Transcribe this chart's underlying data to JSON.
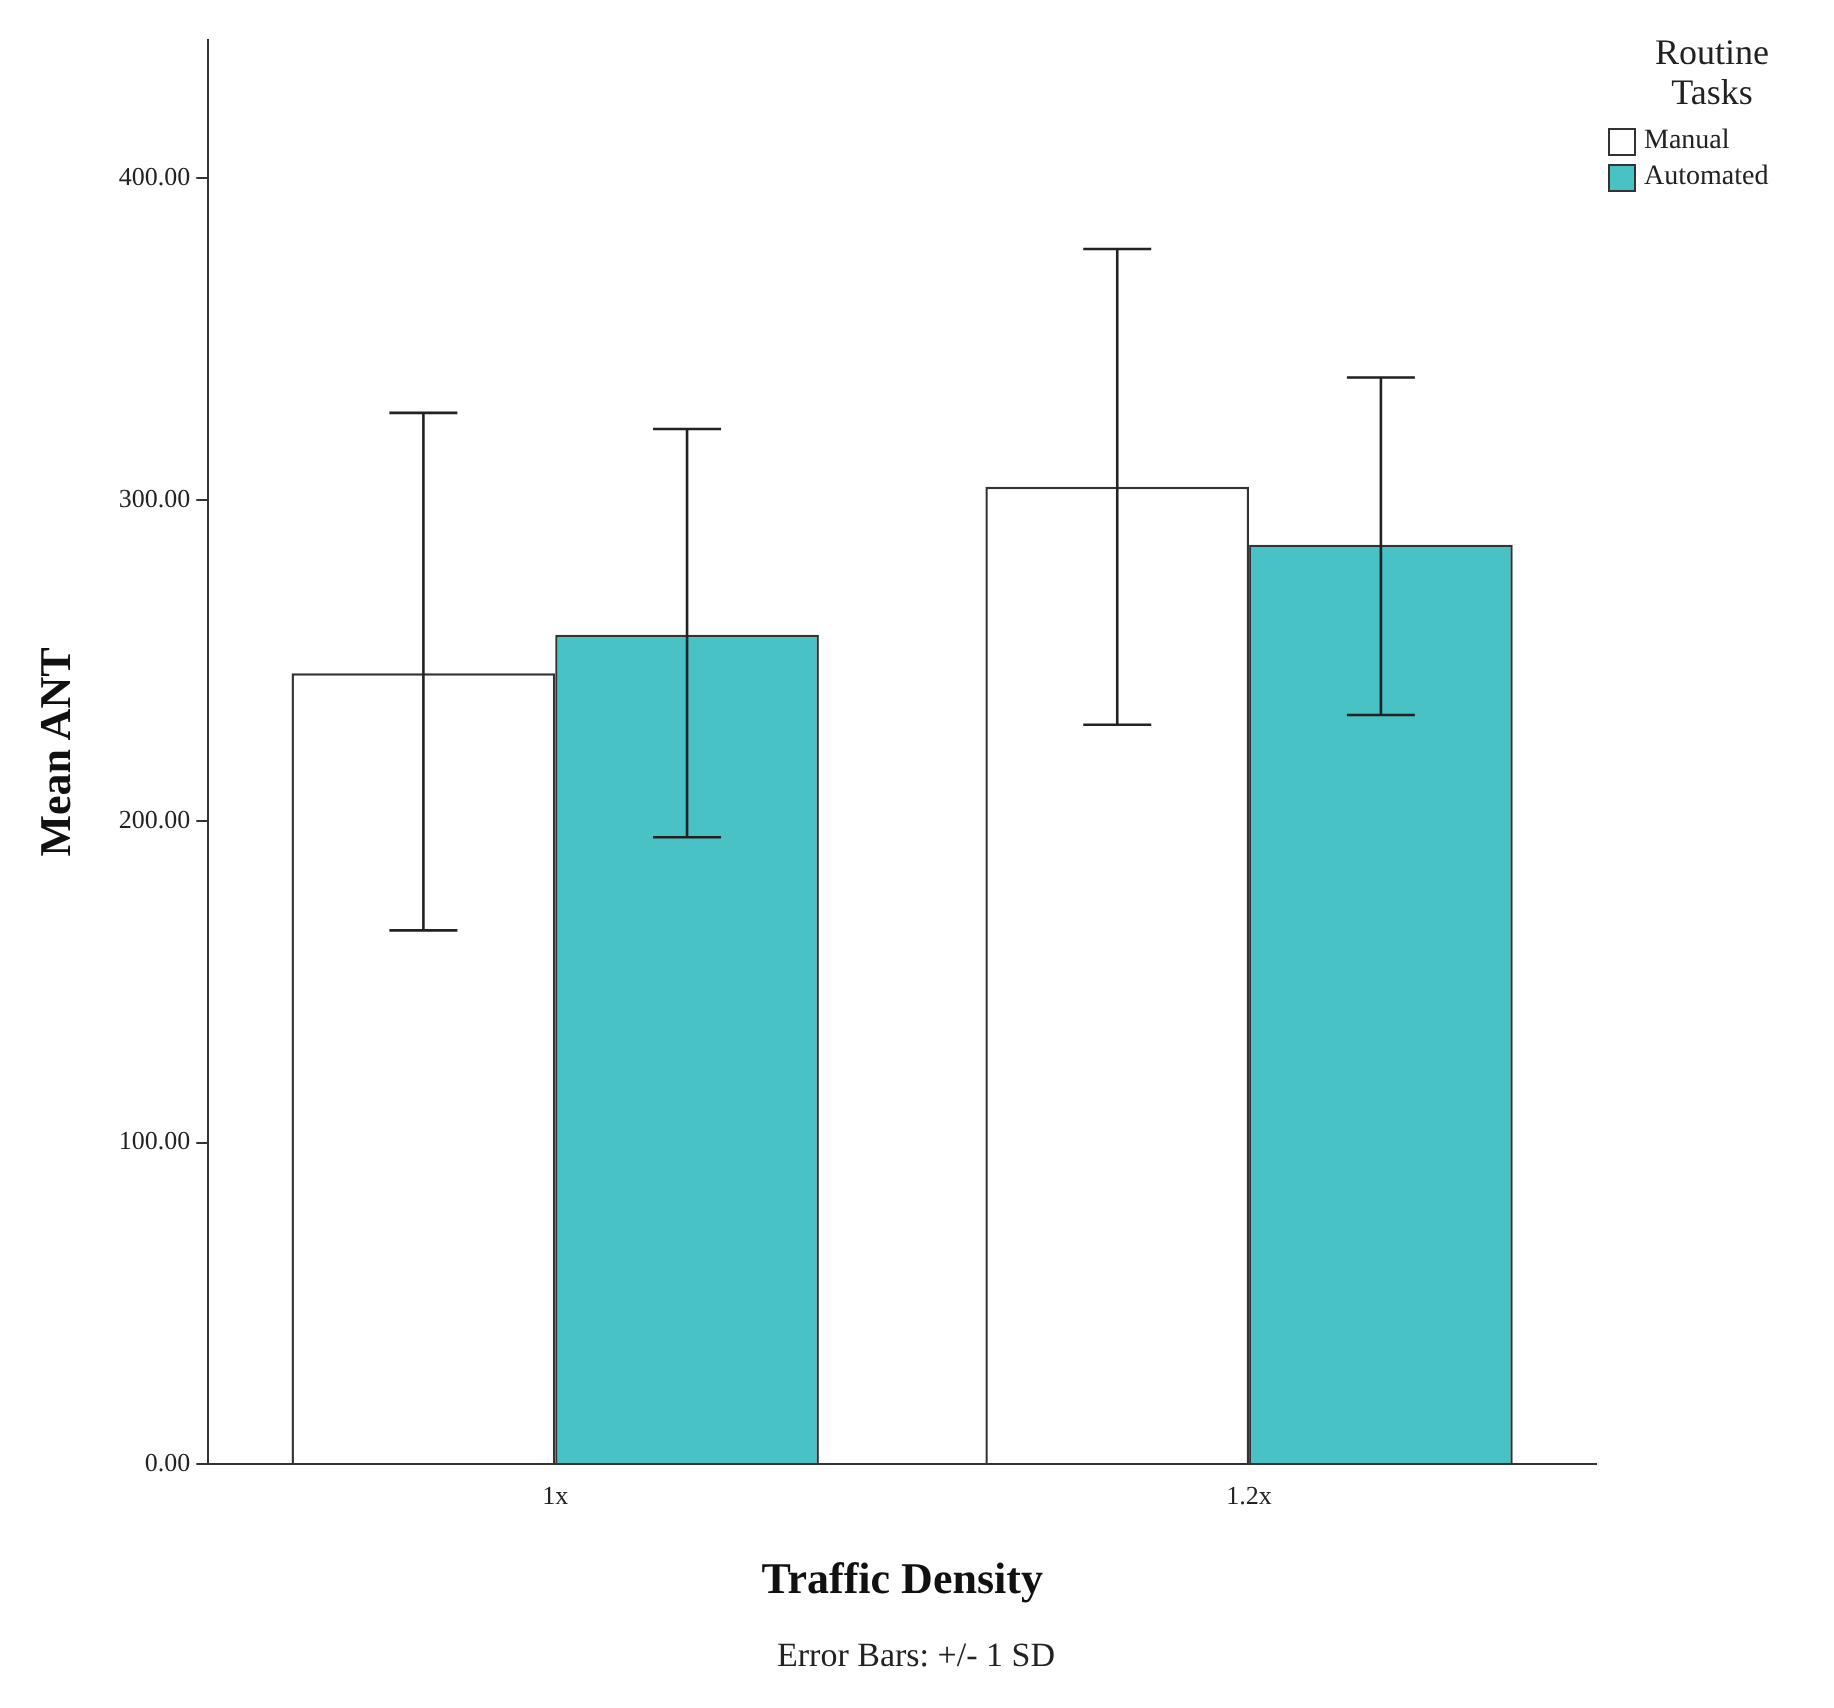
{
  "chart_data": {
    "type": "bar",
    "xlabel": "Traffic Density",
    "ylabel": "Mean ANT",
    "legend_title": "Routine Tasks",
    "categories": [
      "1x",
      "1.2x"
    ],
    "series": [
      {
        "name": "Manual",
        "color": "#ffffff",
        "values": [
          246,
          304
        ],
        "errors": [
          [
            166,
            327
          ],
          [
            230,
            378
          ]
        ]
      },
      {
        "name": "Automated",
        "color": "#48c2c5",
        "values": [
          258,
          286
        ],
        "errors": [
          [
            195,
            322
          ],
          [
            233,
            338
          ]
        ]
      }
    ],
    "ylim": [
      0,
      443
    ],
    "yticks": [
      {
        "value": 0,
        "label": "0.00"
      },
      {
        "value": 100,
        "label": "100.00"
      },
      {
        "value": 200,
        "label": "200.00"
      },
      {
        "value": 300,
        "label": "300.00"
      },
      {
        "value": 400,
        "label": "400.00"
      }
    ],
    "grid": false,
    "legend": "top right",
    "annotations": [
      "Error Bars: +/- 1 SD"
    ]
  }
}
